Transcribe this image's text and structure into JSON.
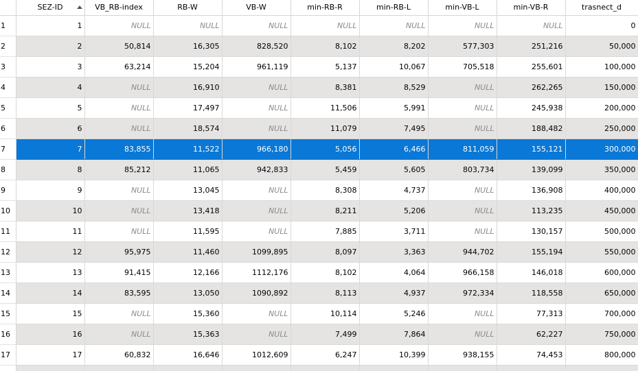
{
  "columns": [
    {
      "label": "SEZ-ID",
      "sorted": "ascending"
    },
    {
      "label": "VB_RB-index"
    },
    {
      "label": "RB-W"
    },
    {
      "label": "VB-W"
    },
    {
      "label": "min-RB-R"
    },
    {
      "label": "min-RB-L"
    },
    {
      "label": "min-VB-L"
    },
    {
      "label": "min-VB-R"
    },
    {
      "label": "trasnect_d"
    }
  ],
  "selected_row": 7,
  "colors": {
    "selection": "#0a78d6",
    "alt_row": "#e6e4e2",
    "null_text": "#8a8a8a"
  },
  "rows": [
    {
      "n": "1",
      "cells": [
        "1",
        "NULL",
        "NULL",
        "NULL",
        "NULL",
        "NULL",
        "NULL",
        "NULL",
        "0"
      ]
    },
    {
      "n": "2",
      "cells": [
        "2",
        "50,814",
        "16,305",
        "828,520",
        "8,102",
        "8,202",
        "577,303",
        "251,216",
        "50,000"
      ]
    },
    {
      "n": "3",
      "cells": [
        "3",
        "63,214",
        "15,204",
        "961,119",
        "5,137",
        "10,067",
        "705,518",
        "255,601",
        "100,000"
      ]
    },
    {
      "n": "4",
      "cells": [
        "4",
        "NULL",
        "16,910",
        "NULL",
        "8,381",
        "8,529",
        "NULL",
        "262,265",
        "150,000"
      ]
    },
    {
      "n": "5",
      "cells": [
        "5",
        "NULL",
        "17,497",
        "NULL",
        "11,506",
        "5,991",
        "NULL",
        "245,938",
        "200,000"
      ]
    },
    {
      "n": "6",
      "cells": [
        "6",
        "NULL",
        "18,574",
        "NULL",
        "11,079",
        "7,495",
        "NULL",
        "188,482",
        "250,000"
      ]
    },
    {
      "n": "7",
      "cells": [
        "7",
        "83,855",
        "11,522",
        "966,180",
        "5,056",
        "6,466",
        "811,059",
        "155,121",
        "300,000"
      ]
    },
    {
      "n": "8",
      "cells": [
        "8",
        "85,212",
        "11,065",
        "942,833",
        "5,459",
        "5,605",
        "803,734",
        "139,099",
        "350,000"
      ]
    },
    {
      "n": "9",
      "cells": [
        "9",
        "NULL",
        "13,045",
        "NULL",
        "8,308",
        "4,737",
        "NULL",
        "136,908",
        "400,000"
      ]
    },
    {
      "n": "10",
      "cells": [
        "10",
        "NULL",
        "13,418",
        "NULL",
        "8,211",
        "5,206",
        "NULL",
        "113,235",
        "450,000"
      ]
    },
    {
      "n": "11",
      "cells": [
        "11",
        "NULL",
        "11,595",
        "NULL",
        "7,885",
        "3,711",
        "NULL",
        "130,157",
        "500,000"
      ]
    },
    {
      "n": "12",
      "cells": [
        "12",
        "95,975",
        "11,460",
        "1099,895",
        "8,097",
        "3,363",
        "944,702",
        "155,194",
        "550,000"
      ]
    },
    {
      "n": "13",
      "cells": [
        "13",
        "91,415",
        "12,166",
        "1112,176",
        "8,102",
        "4,064",
        "966,158",
        "146,018",
        "600,000"
      ]
    },
    {
      "n": "14",
      "cells": [
        "14",
        "83,595",
        "13,050",
        "1090,892",
        "8,113",
        "4,937",
        "972,334",
        "118,558",
        "650,000"
      ]
    },
    {
      "n": "15",
      "cells": [
        "15",
        "NULL",
        "15,360",
        "NULL",
        "10,114",
        "5,246",
        "NULL",
        "77,313",
        "700,000"
      ]
    },
    {
      "n": "16",
      "cells": [
        "16",
        "NULL",
        "15,363",
        "NULL",
        "7,499",
        "7,864",
        "NULL",
        "62,227",
        "750,000"
      ]
    },
    {
      "n": "17",
      "cells": [
        "17",
        "60,832",
        "16,646",
        "1012,609",
        "6,247",
        "10,399",
        "938,155",
        "74,453",
        "800,000"
      ]
    }
  ]
}
